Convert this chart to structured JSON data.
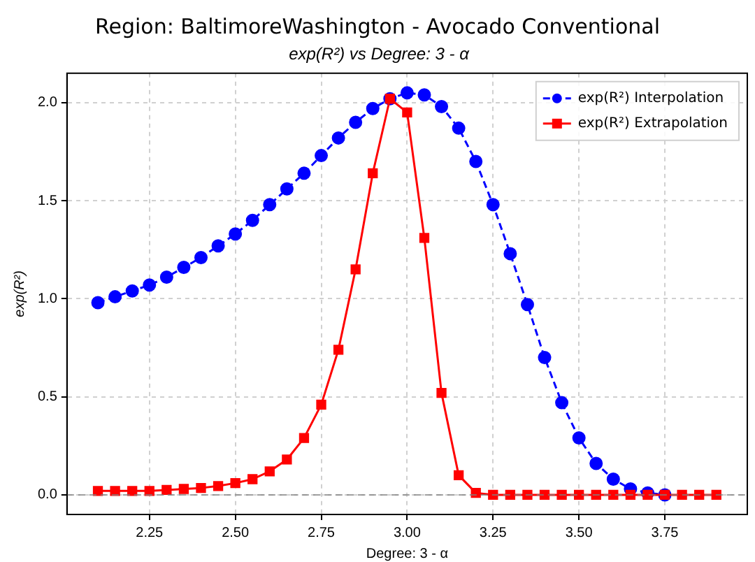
{
  "chart_data": {
    "type": "line",
    "title": "Region: BaltimoreWashington - Avocado Conventional",
    "subtitle": "exp(R²) vs Degree: 3 - α",
    "xlabel": "Degree: 3 - α",
    "ylabel": "exp(R²)",
    "x": [
      2.1,
      2.15,
      2.2,
      2.25,
      2.3,
      2.35,
      2.4,
      2.45,
      2.5,
      2.55,
      2.6,
      2.65,
      2.7,
      2.75,
      2.8,
      2.85,
      2.9,
      2.95,
      3.0,
      3.05,
      3.1,
      3.15,
      3.2,
      3.25,
      3.3,
      3.35,
      3.4,
      3.45,
      3.5,
      3.55,
      3.6,
      3.65,
      3.7,
      3.75,
      3.8,
      3.85,
      3.9
    ],
    "series": [
      {
        "name": "exp(R²) Interpolation",
        "color": "#0000ff",
        "marker": "circle",
        "line_style": "dashed",
        "values": [
          0.98,
          1.01,
          1.04,
          1.07,
          1.11,
          1.16,
          1.21,
          1.27,
          1.33,
          1.4,
          1.48,
          1.56,
          1.64,
          1.73,
          1.82,
          1.9,
          1.97,
          2.02,
          2.05,
          2.04,
          1.98,
          1.87,
          1.7,
          1.48,
          1.23,
          0.97,
          0.7,
          0.47,
          0.29,
          0.16,
          0.08,
          0.03,
          0.01,
          0.0,
          null,
          null,
          null
        ]
      },
      {
        "name": "exp(R²) Extrapolation",
        "color": "#ff0000",
        "marker": "square",
        "line_style": "solid",
        "values": [
          0.02,
          0.02,
          0.02,
          0.02,
          0.025,
          0.03,
          0.035,
          0.045,
          0.06,
          0.08,
          0.12,
          0.18,
          0.29,
          0.46,
          0.74,
          1.15,
          1.64,
          2.02,
          1.95,
          1.31,
          0.52,
          0.1,
          0.01,
          0,
          0,
          0,
          0,
          0,
          0,
          0,
          0,
          0,
          0,
          0,
          0,
          0,
          0
        ]
      }
    ],
    "xlim": [
      2.01,
      3.99
    ],
    "xticks": [
      {
        "value": 2.25,
        "label": "2.25"
      },
      {
        "value": 2.5,
        "label": "2.50"
      },
      {
        "value": 2.75,
        "label": "2.75"
      },
      {
        "value": 3,
        "label": "3.00"
      },
      {
        "value": 3.25,
        "label": "3.25"
      },
      {
        "value": 3.5,
        "label": "3.50"
      },
      {
        "value": 3.75,
        "label": "3.75"
      }
    ],
    "ylim": [
      -0.1,
      2.15
    ],
    "yticks": [
      {
        "value": 0,
        "label": "0.0"
      },
      {
        "value": 0.5,
        "label": "0.5"
      },
      {
        "value": 1,
        "label": "1.0"
      },
      {
        "value": 1.5,
        "label": "1.5"
      },
      {
        "value": 2,
        "label": "2.0"
      }
    ],
    "ref_lines": [
      {
        "axis": "y",
        "value": 0,
        "color": "#808080",
        "line_style": "dashed"
      }
    ],
    "grid": true,
    "legend": "top right"
  }
}
